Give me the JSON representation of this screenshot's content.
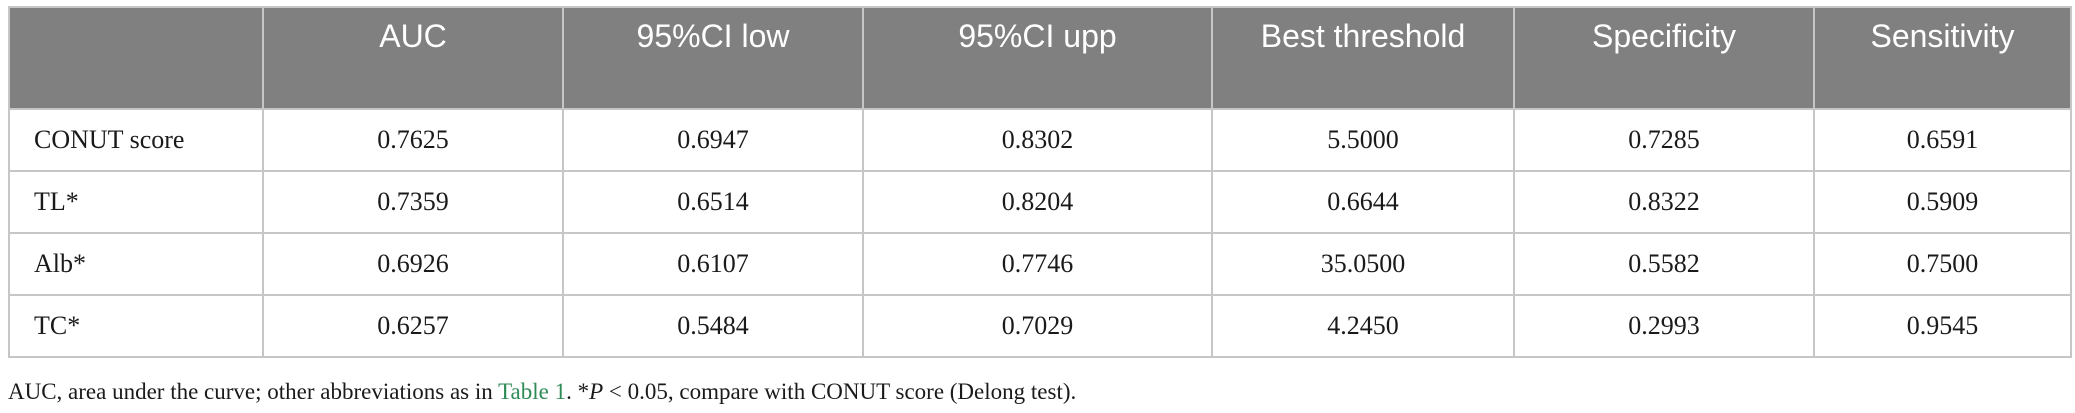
{
  "table": {
    "columns": [
      "",
      "AUC",
      "95%CI low",
      "95%CI upp",
      "Best threshold",
      "Specificity",
      "Sensitivity"
    ],
    "rows": [
      {
        "label": "CONUT score",
        "values": [
          "0.7625",
          "0.6947",
          "0.8302",
          "5.5000",
          "0.7285",
          "0.6591"
        ]
      },
      {
        "label": "TL*",
        "values": [
          "0.7359",
          "0.6514",
          "0.8204",
          "0.6644",
          "0.8322",
          "0.5909"
        ]
      },
      {
        "label": "Alb*",
        "values": [
          "0.6926",
          "0.6107",
          "0.7746",
          "35.0500",
          "0.5582",
          "0.7500"
        ]
      },
      {
        "label": "TC*",
        "values": [
          "0.6257",
          "0.5484",
          "0.7029",
          "4.2450",
          "0.2993",
          "0.9545"
        ]
      }
    ]
  },
  "footnote": {
    "part1": "AUC, area under the curve; other abbreviations as in ",
    "link_text": "Table 1",
    "part2": ". *",
    "p_symbol": "P",
    "part3": " < 0.05, compare with CONUT score (Delong test)."
  },
  "colors": {
    "header_bg": "#808080",
    "header_text": "#ffffff",
    "grid": "#c6c6c6",
    "link": "#2e8b57"
  }
}
